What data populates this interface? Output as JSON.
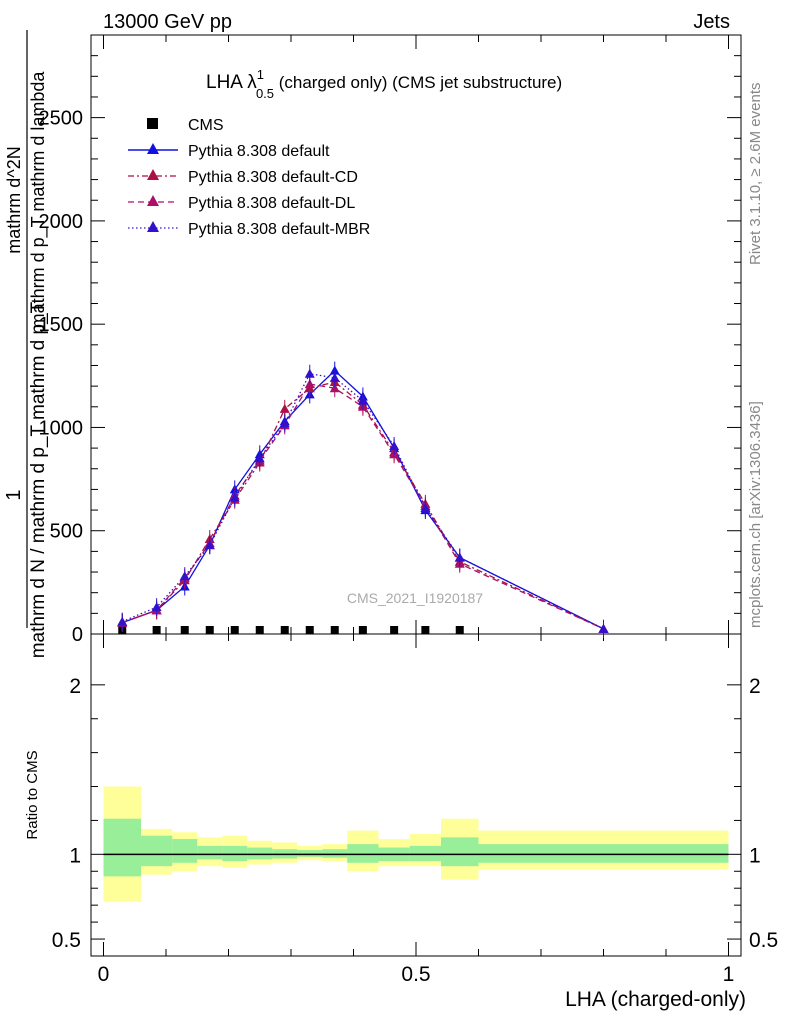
{
  "header": {
    "left": "13000 GeV pp",
    "right": "Jets"
  },
  "title": {
    "main": "LHA λ",
    "sup": "1",
    "sub": "0.5",
    "rest": " (charged only) (CMS jet substructure)"
  },
  "side_labels": {
    "rivet": "Rivet 3.1.10, ≥ 2.6M events",
    "mcplots": "mcplots.cern.ch [arXiv:1306.3436]"
  },
  "watermark": "CMS_2021_I1920187",
  "legend": [
    {
      "label": "CMS"
    },
    {
      "label": "Pythia 8.308 default"
    },
    {
      "label": "Pythia 8.308 default-CD"
    },
    {
      "label": "Pythia 8.308 default-DL"
    },
    {
      "label": "Pythia 8.308 default-MBR"
    }
  ],
  "chart_data": {
    "type": "line",
    "ylabel_num": "1",
    "ylabel_den": "mathrm d N / mathrm d p_T mathrm d p_T",
    "ylabel_top_num": "mathrm d^2N",
    "ylabel_top_den": "mathrm d p_T mathrm d lambda",
    "xlabel": "LHA (charged-only)",
    "xlim": [
      -0.02,
      1.02
    ],
    "ylim": [
      0,
      2900
    ],
    "yticks": [
      "0",
      "500",
      "1000",
      "1500",
      "2000",
      "2500"
    ],
    "xticks": [
      "0",
      "0.5",
      "1"
    ],
    "x": [
      0.03,
      0.085,
      0.13,
      0.17,
      0.21,
      0.25,
      0.29,
      0.33,
      0.37,
      0.415,
      0.465,
      0.515,
      0.57,
      0.8
    ],
    "bin_edges": [
      0,
      0.06,
      0.11,
      0.15,
      0.19,
      0.23,
      0.27,
      0.31,
      0.35,
      0.39,
      0.44,
      0.49,
      0.54,
      0.6,
      1.0
    ],
    "series": [
      {
        "name": "CMS",
        "color": "#000000",
        "style": "marker",
        "values": [
          3,
          3,
          3,
          3,
          3,
          3,
          3,
          3,
          3,
          3,
          3,
          3,
          3,
          null
        ]
      },
      {
        "name": "Pythia 8.308 default",
        "color": "#1010e0",
        "style": "solid",
        "values": [
          55,
          115,
          230,
          430,
          700,
          870,
          1030,
          1160,
          1275,
          1150,
          900,
          600,
          370,
          25
        ]
      },
      {
        "name": "Pythia 8.308 default-CD",
        "color": "#aa1144",
        "style": "dashdot",
        "values": [
          55,
          115,
          260,
          460,
          650,
          830,
          1090,
          1190,
          1220,
          1110,
          880,
          630,
          350,
          25
        ]
      },
      {
        "name": "Pythia 8.308 default-DL",
        "color": "#aa1166",
        "style": "dash",
        "values": [
          55,
          115,
          270,
          440,
          670,
          840,
          1010,
          1210,
          1190,
          1100,
          870,
          620,
          340,
          25
        ]
      },
      {
        "name": "Pythia 8.308 default-MBR",
        "color": "#3311cc",
        "style": "dot",
        "values": [
          60,
          130,
          280,
          430,
          660,
          850,
          1020,
          1260,
          1240,
          1130,
          910,
          610,
          370,
          25
        ]
      }
    ],
    "ratio": {
      "ylabel": "Ratio to CMS",
      "ylim": [
        0.4,
        2.3
      ],
      "yticks": [
        "0.5",
        "1",
        "2"
      ],
      "green_band": [
        [
          0.87,
          1.21
        ],
        [
          0.93,
          1.11
        ],
        [
          0.95,
          1.09
        ],
        [
          0.97,
          1.05
        ],
        [
          0.96,
          1.05
        ],
        [
          0.97,
          1.04
        ],
        [
          0.975,
          1.03
        ],
        [
          0.985,
          1.025
        ],
        [
          0.98,
          1.03
        ],
        [
          0.95,
          1.06
        ],
        [
          0.96,
          1.04
        ],
        [
          0.96,
          1.05
        ],
        [
          0.93,
          1.1
        ],
        [
          0.95,
          1.06
        ]
      ],
      "yellow_band": [
        [
          0.72,
          1.4
        ],
        [
          0.88,
          1.15
        ],
        [
          0.9,
          1.13
        ],
        [
          0.93,
          1.1
        ],
        [
          0.92,
          1.11
        ],
        [
          0.94,
          1.08
        ],
        [
          0.95,
          1.07
        ],
        [
          0.965,
          1.05
        ],
        [
          0.96,
          1.06
        ],
        [
          0.9,
          1.14
        ],
        [
          0.93,
          1.09
        ],
        [
          0.93,
          1.12
        ],
        [
          0.85,
          1.21
        ],
        [
          0.91,
          1.14
        ]
      ]
    }
  }
}
